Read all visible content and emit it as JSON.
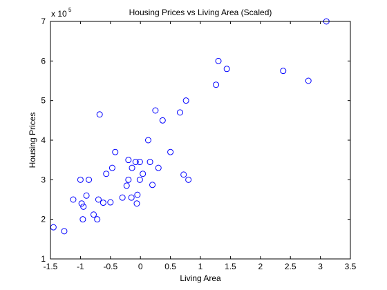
{
  "chart_data": {
    "type": "scatter",
    "title": "Housing Prices vs Living Area (Scaled)",
    "xlabel": "Living Area",
    "ylabel": "Housing Prices",
    "y_multiplier": {
      "base": "x 10",
      "exponent": "5"
    },
    "xlim": [
      -1.5,
      3.5
    ],
    "ylim": [
      100000,
      700000
    ],
    "xticks": [
      -1.5,
      -1,
      -0.5,
      0,
      0.5,
      1,
      1.5,
      2,
      2.5,
      3,
      3.5
    ],
    "xtick_labels": [
      "-1.5",
      "-1",
      "-0.5",
      "0",
      "0.5",
      "1",
      "1.5",
      "2",
      "2.5",
      "3",
      "3.5"
    ],
    "yticks": [
      100000,
      200000,
      300000,
      400000,
      500000,
      600000,
      700000
    ],
    "ytick_labels": [
      "1",
      "2",
      "3",
      "4",
      "5",
      "6",
      "7"
    ],
    "grid": false,
    "marker": "circle",
    "marker_color": "#0000ff",
    "series": [
      {
        "x": [
          3.1,
          1.3,
          1.44,
          2.38,
          2.8,
          1.26,
          0.76,
          0.66,
          0.25,
          0.37,
          0.13,
          0.5,
          0.16,
          0.3,
          -0.68,
          -0.42,
          -0.2,
          -0.08,
          -0.01,
          -0.47,
          -0.57,
          -0.14,
          -0.01,
          0.04,
          -0.2,
          -0.23,
          0.2,
          0.72,
          0.8,
          -1.0,
          -0.86,
          -0.9,
          -1.12,
          -0.98,
          -0.95,
          -0.7,
          -0.62,
          -0.5,
          -0.3,
          -0.15,
          -0.06,
          -0.05,
          -0.78,
          -0.72,
          -0.96,
          -1.45,
          -1.27
        ],
        "y": [
          700000,
          600000,
          580000,
          575000,
          550000,
          540000,
          500000,
          470000,
          475000,
          450000,
          400000,
          370000,
          345000,
          330000,
          465000,
          370000,
          350000,
          345000,
          345000,
          330000,
          315000,
          330000,
          300000,
          315000,
          300000,
          285000,
          287000,
          313000,
          300000,
          300000,
          300000,
          260000,
          250000,
          240000,
          232000,
          250000,
          242000,
          243000,
          255000,
          255000,
          240000,
          262000,
          212000,
          200000,
          200000,
          180000,
          170000
        ]
      }
    ]
  }
}
